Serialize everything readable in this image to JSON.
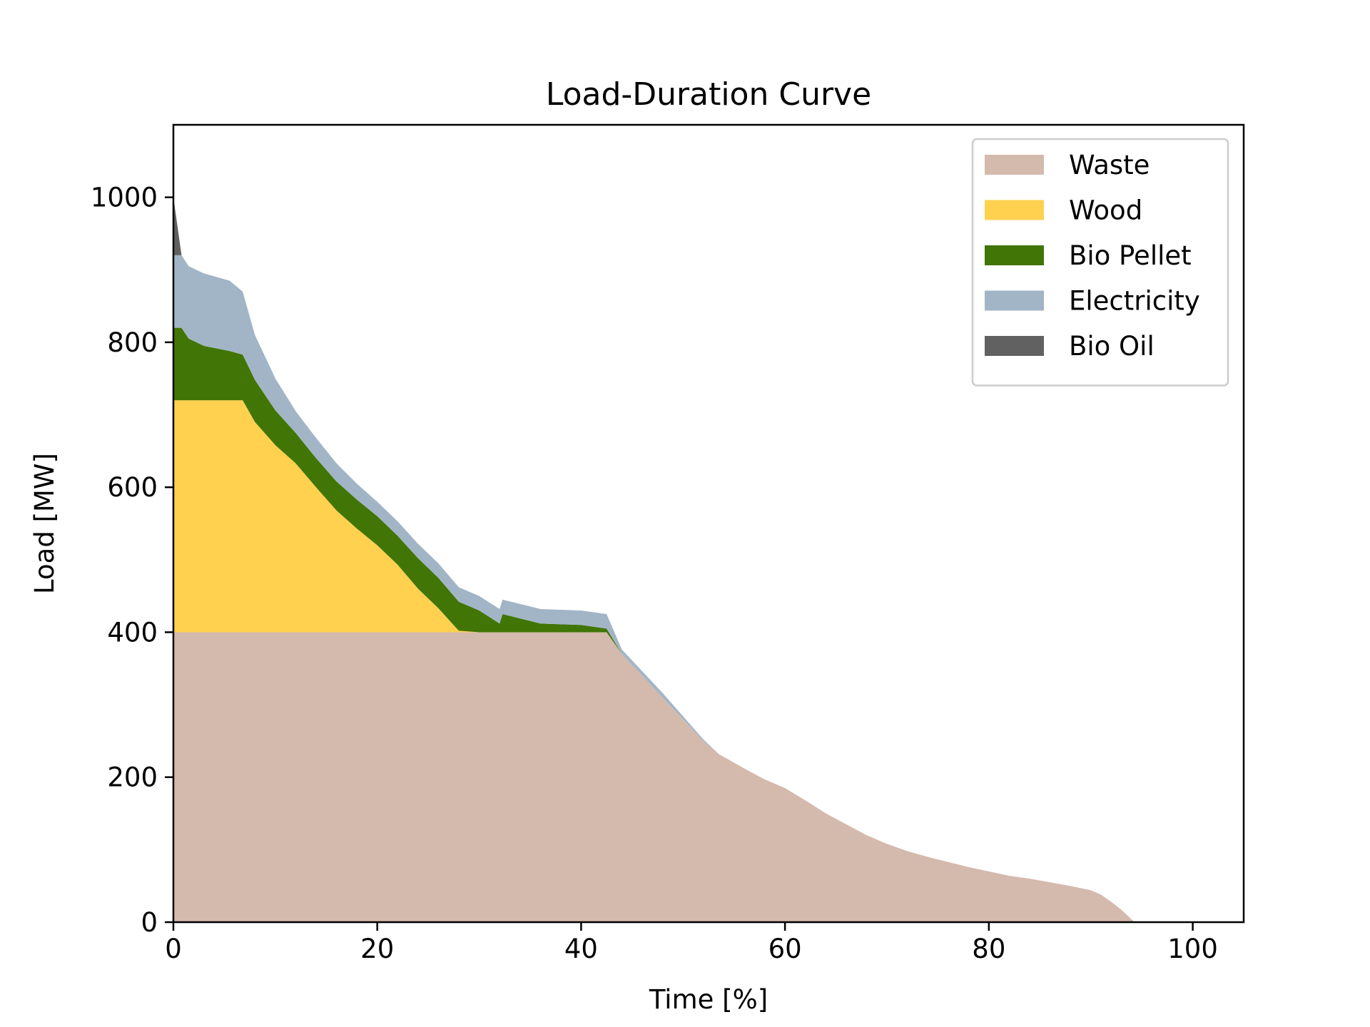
{
  "chart_data": {
    "type": "area",
    "stacked": true,
    "title": "Load-Duration Curve",
    "xlabel": "Time [%]",
    "ylabel": "Load [MW]",
    "xlim": [
      0,
      105
    ],
    "ylim": [
      0,
      1100
    ],
    "xticks": [
      0,
      20,
      40,
      60,
      80,
      100
    ],
    "yticks": [
      0,
      200,
      400,
      600,
      800,
      1000
    ],
    "grid": false,
    "legend_position": "top-right",
    "x": [
      0,
      0.8,
      1.5,
      3,
      5.5,
      6.8,
      8,
      10,
      12,
      14,
      16,
      18,
      20,
      22,
      24,
      26,
      28,
      30,
      32,
      32.3,
      36,
      40,
      42.5,
      44,
      46,
      48,
      50,
      52,
      53.5,
      56,
      58,
      60,
      62,
      64,
      66,
      68,
      70,
      72,
      74,
      76,
      78,
      80,
      82,
      84,
      86,
      88,
      90,
      91,
      92,
      93,
      94.3,
      95,
      100
    ],
    "series": [
      {
        "name": "Waste",
        "color": "#d4b9ad",
        "values": [
          400,
          400,
          400,
          400,
          400,
          400,
          400,
          400,
          400,
          400,
          400,
          400,
          400,
          400,
          400,
          400,
          400,
          400,
          400,
          400,
          400,
          400,
          400,
          370,
          340,
          310,
          280,
          250,
          232,
          212,
          197,
          185,
          168,
          150,
          135,
          120,
          108,
          98,
          90,
          83,
          76,
          70,
          64,
          60,
          55,
          50,
          44,
          38,
          28,
          17,
          0,
          0,
          0
        ]
      },
      {
        "name": "Wood",
        "color": "#ffd14f",
        "values": [
          320,
          320,
          320,
          320,
          320,
          320,
          290,
          258,
          233,
          200,
          168,
          143,
          120,
          93,
          60,
          33,
          2,
          0,
          0,
          0,
          0,
          0,
          0,
          0,
          0,
          0,
          0,
          0,
          0,
          0,
          0,
          0,
          0,
          0,
          0,
          0,
          0,
          0,
          0,
          0,
          0,
          0,
          0,
          0,
          0,
          0,
          0,
          0,
          0,
          0,
          0,
          0,
          0
        ]
      },
      {
        "name": "Bio Pellet",
        "color": "#417505",
        "values": [
          100,
          100,
          85,
          75,
          68,
          63,
          58,
          48,
          42,
          40,
          40,
          40,
          40,
          40,
          42,
          42,
          40,
          30,
          12,
          25,
          12,
          10,
          5,
          0,
          0,
          0,
          0,
          0,
          0,
          0,
          0,
          0,
          0,
          0,
          0,
          0,
          0,
          0,
          0,
          0,
          0,
          0,
          0,
          0,
          0,
          0,
          0,
          0,
          0,
          0,
          0,
          0,
          0
        ]
      },
      {
        "name": "Electricity",
        "color": "#a2b5c7",
        "values": [
          100,
          100,
          100,
          100,
          97,
          87,
          62,
          44,
          30,
          28,
          25,
          22,
          20,
          20,
          20,
          20,
          20,
          20,
          20,
          20,
          20,
          20,
          20,
          6,
          6,
          6,
          4,
          2,
          0,
          0,
          0,
          0,
          0,
          0,
          0,
          0,
          0,
          0,
          0,
          0,
          0,
          0,
          0,
          0,
          0,
          0,
          0,
          0,
          0,
          0,
          0,
          0,
          0
        ]
      },
      {
        "name": "Bio Oil",
        "color": "#616161",
        "values": [
          80,
          0,
          0,
          0,
          0,
          0,
          0,
          0,
          0,
          0,
          0,
          0,
          0,
          0,
          0,
          0,
          0,
          0,
          0,
          0,
          0,
          0,
          0,
          0,
          0,
          0,
          0,
          0,
          0,
          0,
          0,
          0,
          0,
          0,
          0,
          0,
          0,
          0,
          0,
          0,
          0,
          0,
          0,
          0,
          0,
          0,
          0,
          0,
          0,
          0,
          0,
          0,
          0
        ]
      }
    ]
  }
}
